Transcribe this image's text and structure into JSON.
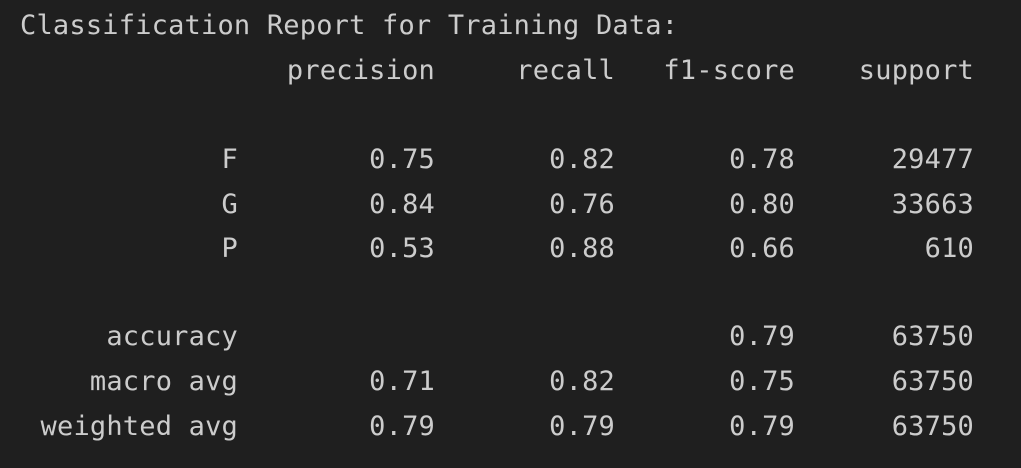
{
  "report": {
    "title": "Classification Report for Training Data:",
    "headers": {
      "precision": "precision",
      "recall": "recall",
      "f1": "f1-score",
      "support": "support"
    },
    "classes": [
      {
        "label": "F",
        "precision": "0.75",
        "recall": "0.82",
        "f1": "0.78",
        "support": "29477"
      },
      {
        "label": "G",
        "precision": "0.84",
        "recall": "0.76",
        "f1": "0.80",
        "support": "33663"
      },
      {
        "label": "P",
        "precision": "0.53",
        "recall": "0.88",
        "f1": "0.66",
        "support": "610"
      }
    ],
    "accuracy": {
      "label": "accuracy",
      "f1": "0.79",
      "support": "63750"
    },
    "macro": {
      "label": "macro avg",
      "precision": "0.71",
      "recall": "0.82",
      "f1": "0.75",
      "support": "63750"
    },
    "weighted": {
      "label": "weighted avg",
      "precision": "0.79",
      "recall": "0.79",
      "f1": "0.79",
      "support": "63750"
    }
  }
}
